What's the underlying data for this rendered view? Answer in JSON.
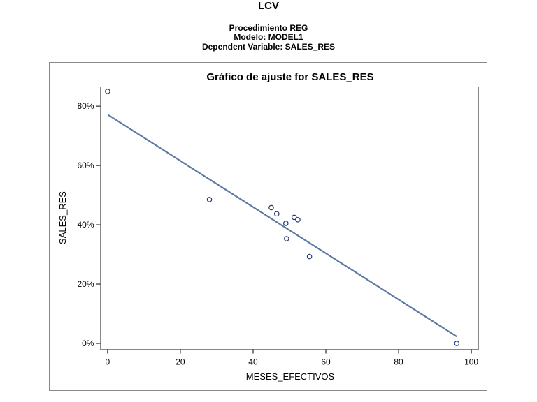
{
  "header": {
    "title": "LCV",
    "subtitles": [
      "Procedimiento REG",
      "Modelo: MODEL1",
      "Dependent Variable: SALES_RES"
    ]
  },
  "chart_data": {
    "type": "scatter",
    "title": "Gráfico de ajuste for SALES_RES",
    "xlabel": "MESES_EFECTIVOS",
    "ylabel": "SALES_RES",
    "xlim": [
      -2,
      102
    ],
    "ylim": [
      -2,
      86.5
    ],
    "x_ticks": [
      0,
      20,
      40,
      60,
      80,
      100
    ],
    "y_ticks": [
      0,
      20,
      40,
      60,
      80
    ],
    "y_tick_labels": [
      "0%",
      "20%",
      "40%",
      "60%",
      "80%"
    ],
    "points": [
      {
        "x": 0,
        "y": 85
      },
      {
        "x": 28,
        "y": 48.5
      },
      {
        "x": 45,
        "y": 45.8
      },
      {
        "x": 46.5,
        "y": 43.7
      },
      {
        "x": 49,
        "y": 40.5
      },
      {
        "x": 51.3,
        "y": 42.5
      },
      {
        "x": 52.3,
        "y": 41.7
      },
      {
        "x": 49.2,
        "y": 35.3
      },
      {
        "x": 55.5,
        "y": 29.3
      },
      {
        "x": 96,
        "y": 0
      }
    ],
    "fit_line": {
      "x": [
        0.2,
        96
      ],
      "y": [
        77,
        2.3
      ]
    },
    "colors": {
      "points": "#1f3d7a",
      "fit_line": "#5d7aa3",
      "frame": "#888888"
    }
  }
}
